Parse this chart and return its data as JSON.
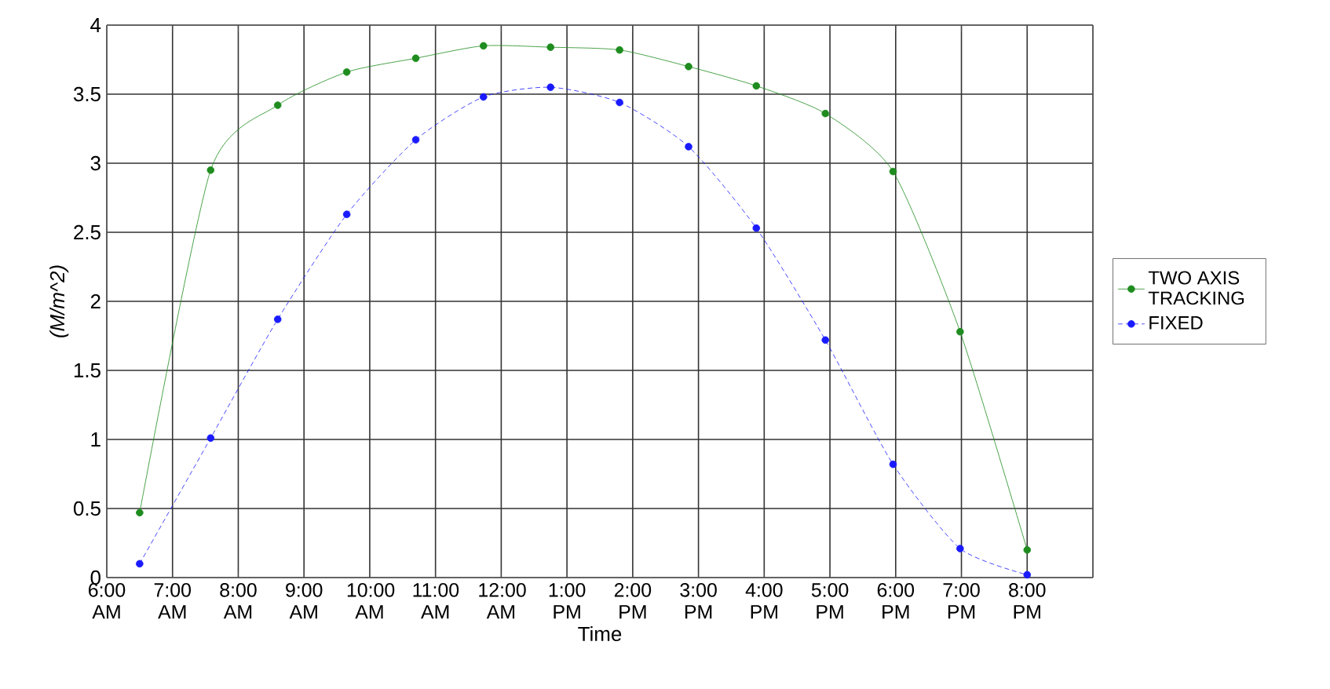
{
  "chart_data": {
    "type": "line",
    "xlabel": "Time",
    "ylabel": "(M/m^2)",
    "xlim": [
      6,
      21
    ],
    "ylim": [
      0,
      4
    ],
    "xticks": [
      {
        "value": 6,
        "label": "6:00 AM"
      },
      {
        "value": 7,
        "label": "7:00 AM"
      },
      {
        "value": 8,
        "label": "8:00 AM"
      },
      {
        "value": 9,
        "label": "9:00 AM"
      },
      {
        "value": 10,
        "label": "10:00 AM"
      },
      {
        "value": 11,
        "label": "11:00 AM"
      },
      {
        "value": 12,
        "label": "12:00 AM"
      },
      {
        "value": 13,
        "label": "1:00 PM"
      },
      {
        "value": 14,
        "label": "2:00 PM"
      },
      {
        "value": 15,
        "label": "3:00 PM"
      },
      {
        "value": 16,
        "label": "4:00 PM"
      },
      {
        "value": 17,
        "label": "5:00 PM"
      },
      {
        "value": 18,
        "label": "6:00 PM"
      },
      {
        "value": 19,
        "label": "7:00 PM"
      },
      {
        "value": 20,
        "label": "8:00 PM"
      },
      {
        "value": 21,
        "label": null
      }
    ],
    "yticks": [
      0,
      0.5,
      1,
      1.5,
      2,
      2.5,
      3,
      3.5,
      4
    ],
    "x": [
      6.5,
      7.58,
      8.6,
      9.65,
      10.7,
      11.73,
      12.75,
      13.8,
      14.85,
      15.88,
      16.93,
      17.96,
      18.98,
      20.0
    ],
    "series": [
      {
        "name": "TWO AXIS TRACKING",
        "color": "#1e8c1e",
        "line_style": "solid",
        "values": [
          0.47,
          2.95,
          3.42,
          3.66,
          3.76,
          3.85,
          3.84,
          3.82,
          3.7,
          3.56,
          3.36,
          2.94,
          1.78,
          0.2
        ]
      },
      {
        "name": "FIXED",
        "color": "#1a1aff",
        "line_style": "dashed",
        "values": [
          0.1,
          1.01,
          1.87,
          2.63,
          3.17,
          3.48,
          3.55,
          3.44,
          3.12,
          2.53,
          1.72,
          0.82,
          0.21,
          0.02
        ]
      }
    ],
    "grid": true,
    "legend": "right",
    "marker": "circle"
  }
}
